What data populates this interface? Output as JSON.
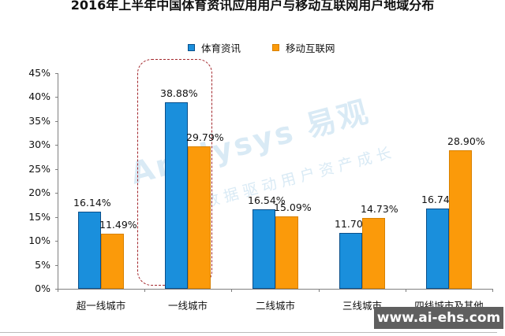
{
  "title": "2016年上半年中国体育资讯应用用户与移动互联网用户地域分布",
  "legend": [
    {
      "label": "体育资讯",
      "color": "#1a8fdc"
    },
    {
      "label": "移动互联网",
      "color": "#fb9a0a"
    }
  ],
  "y_axis": {
    "ticks": [
      "0%",
      "5%",
      "10%",
      "15%",
      "20%",
      "25%",
      "30%",
      "35%",
      "40%",
      "45%"
    ]
  },
  "categories": [
    "超一线城市",
    "一线城市",
    "二线城市",
    "三线城市",
    "四线城市及其他"
  ],
  "labels": {
    "sports": [
      "16.14%",
      "38.88%",
      "16.54%",
      "11.70%",
      "16.74%"
    ],
    "mobile": [
      "11.49%",
      "29.79%",
      "15.09%",
      "14.73%",
      "28.90%"
    ]
  },
  "watermark": {
    "brand": "Analysys 易观",
    "slogan": "数据驱动用户资产成长"
  },
  "site_badge": "www.ai-ehs.com",
  "chart_data": {
    "type": "bar",
    "title": "2016年上半年中国体育资讯应用用户与移动互联网用户地域分布",
    "xlabel": "",
    "ylabel": "",
    "ylim": [
      0,
      45
    ],
    "yticks": [
      0,
      5,
      10,
      15,
      20,
      25,
      30,
      35,
      40,
      45
    ],
    "grid": false,
    "legend_position": "top",
    "categories": [
      "超一线城市",
      "一线城市",
      "二线城市",
      "三线城市",
      "四线城市及其他"
    ],
    "series": [
      {
        "name": "体育资讯",
        "color": "#1a8fdc",
        "values": [
          16.14,
          38.88,
          16.54,
          11.7,
          16.74
        ]
      },
      {
        "name": "移动互联网",
        "color": "#fb9a0a",
        "values": [
          11.49,
          29.79,
          15.09,
          14.73,
          28.9
        ]
      }
    ],
    "annotations": [
      "dashed rounded box highlighting 一线城市"
    ]
  }
}
